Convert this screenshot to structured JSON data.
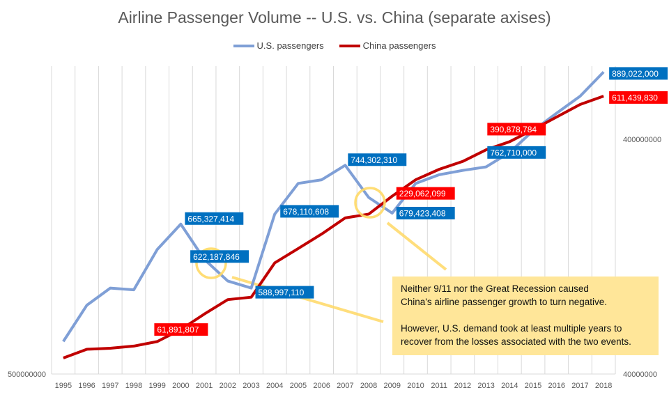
{
  "chart_data": {
    "type": "line",
    "title": "Airline Passenger Volume -- U.S. vs. China (separate axises)",
    "categories": [
      "1995",
      "1996",
      "1997",
      "1998",
      "1999",
      "2000",
      "2001",
      "2002",
      "2003",
      "2004",
      "2005",
      "2006",
      "2007",
      "2008",
      "2009",
      "2010",
      "2011",
      "2012",
      "2013",
      "2014",
      "2015",
      "2016",
      "2017",
      "2018"
    ],
    "series": [
      {
        "name": "U.S. passengers",
        "axis": "left",
        "color": "#7F9FD6",
        "label_color": "#0070C0",
        "values": [
          532000000,
          570000000,
          589000000,
          587000000,
          634000000,
          665327414,
          622187846,
          597000000,
          588997110,
          678110608,
          719000000,
          724000000,
          744302310,
          700000000,
          679423408,
          719000000,
          731000000,
          737000000,
          742000000,
          762710000,
          795000000,
          822000000,
          849000000,
          889022000
        ],
        "data_labels": {
          "2000": "665,327,414",
          "2001": "622,187,846",
          "2003": "588,997,110",
          "2004": "678,110,608",
          "2007": "744,302,310",
          "2009": "679,423,408",
          "2014": "762,710,000",
          "2018": "889,022,000"
        }
      },
      {
        "name": "China passengers",
        "axis": "right",
        "color": "#C00000",
        "label_color": "#FF0000",
        "values": [
          46800000,
          51000000,
          51500000,
          52600000,
          55000000,
          61891807,
          72000000,
          83000000,
          85000000,
          119000000,
          137000000,
          158000000,
          185000000,
          192000000,
          229062099,
          269000000,
          298000000,
          322000000,
          361000000,
          390878784,
          440000000,
          498000000,
          563000000,
          611439830
        ],
        "data_labels": {
          "2000": "61,891,807",
          "2009": "229,062,099",
          "2014": "390,878,784",
          "2018": "611,439,830"
        }
      }
    ],
    "y_left": {
      "scale": "log",
      "ticks": [
        "500000000"
      ],
      "min": 500000000,
      "max": 899000000
    },
    "y_right": {
      "scale": "log",
      "ticks": [
        "400000000",
        "40000000"
      ],
      "min": 40000000,
      "max": 820000000
    },
    "grid": "vertical",
    "legend_position": "top",
    "annotation": {
      "color": "#FFE699",
      "highlight_color": "#FFD966",
      "lines": [
        "Neither 9/11 nor the Great Recession caused",
        "China's airline passenger growth to turn negative.",
        "However, U.S. demand took at least multiple years to",
        "recover from the losses associated with the two events."
      ]
    }
  }
}
